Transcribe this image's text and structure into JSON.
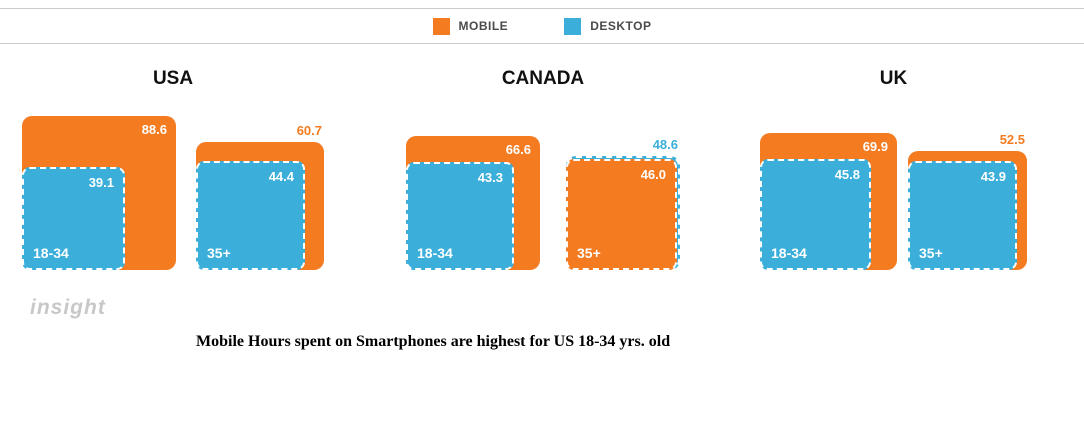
{
  "watermark": "insight",
  "caption": "Mobile Hours spent on Smartphones are highest for US 18-34 yrs. old",
  "chart_data": {
    "type": "nested-squares",
    "series": [
      "MOBILE",
      "DESKTOP"
    ],
    "colors": {
      "mobile": "#F47B20",
      "desktop": "#3BAFDA"
    },
    "encoding": "square area proportional to value; smaller value nested inside larger, bottom-left aligned",
    "legend_position": "top-center",
    "countries": [
      {
        "name": "USA",
        "groups": [
          {
            "age": "18-34",
            "mobile": 88.6,
            "desktop": 39.1
          },
          {
            "age": "35+",
            "mobile": 60.7,
            "desktop": 44.4
          }
        ]
      },
      {
        "name": "CANADA",
        "groups": [
          {
            "age": "18-34",
            "mobile": 66.6,
            "desktop": 43.3
          },
          {
            "age": "35+",
            "mobile": 46.0,
            "desktop": 48.6
          }
        ]
      },
      {
        "name": "UK",
        "groups": [
          {
            "age": "18-34",
            "mobile": 69.9,
            "desktop": 45.8
          },
          {
            "age": "35+",
            "mobile": 52.5,
            "desktop": 43.9
          }
        ]
      }
    ]
  }
}
